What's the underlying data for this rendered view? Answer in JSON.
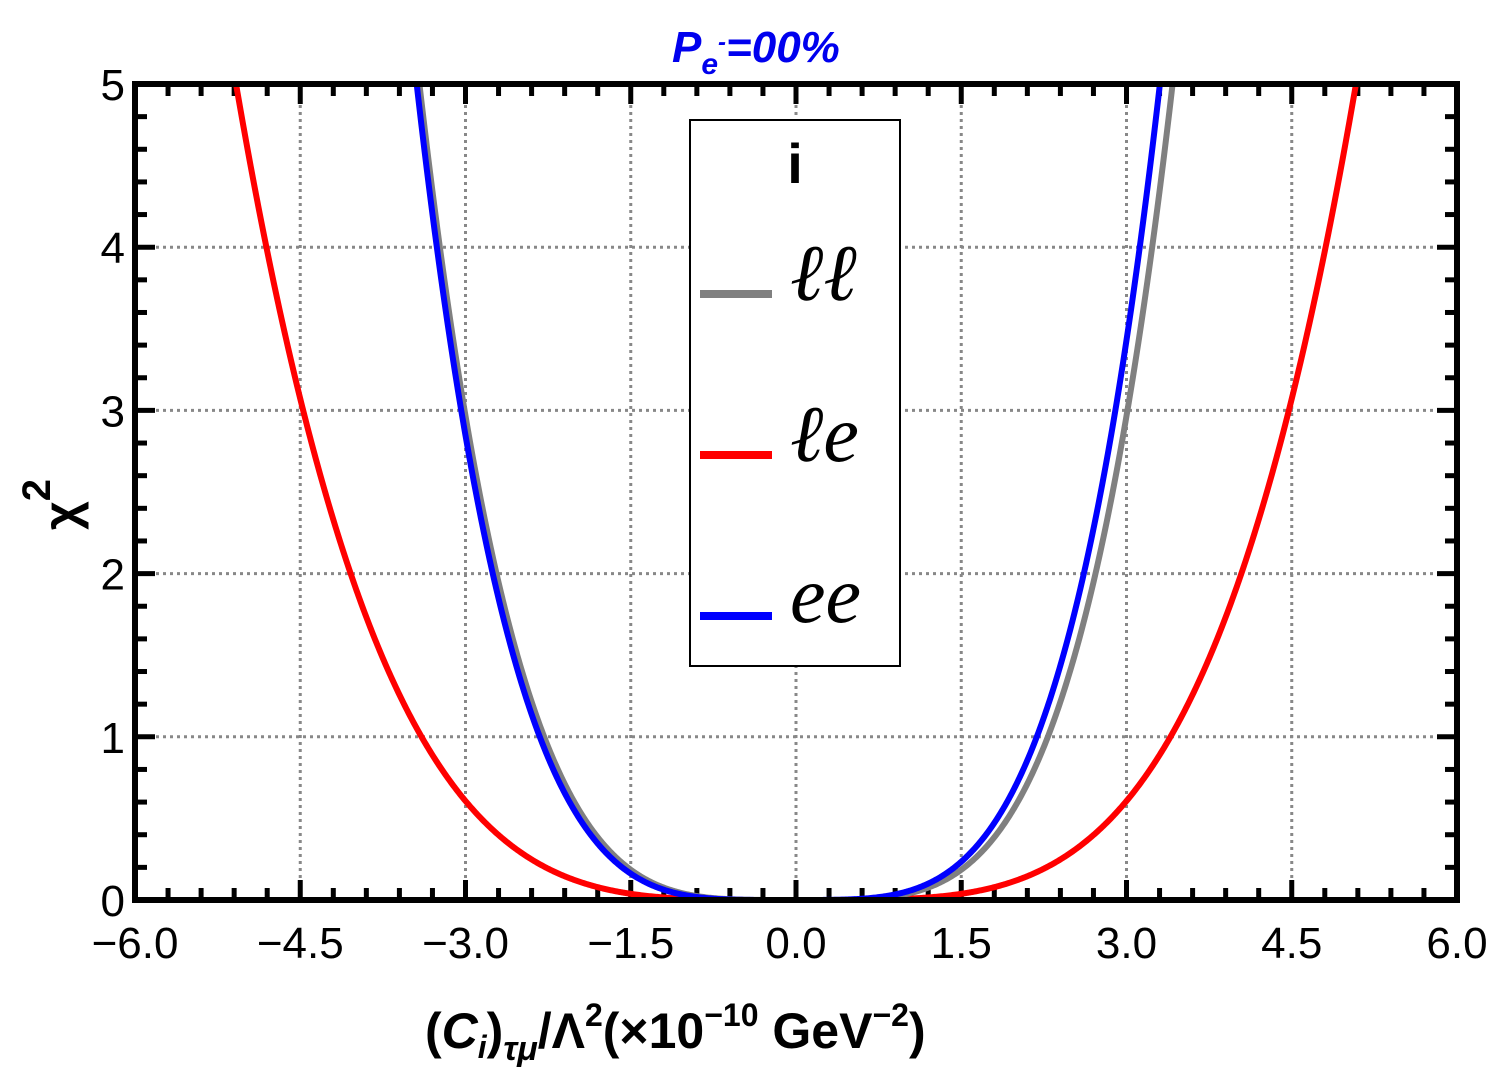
{
  "chart_data": {
    "type": "line",
    "title": "P",
    "title_sub": "e",
    "title_sup": "-",
    "title_rest": "=00%",
    "xlabel": {
      "open": "(",
      "c": "C",
      "c_sub": "i",
      "close": ")",
      "sub": "τμ",
      "lambda": "/Λ",
      "lambda_sup": "2",
      "paren": "(×10",
      "exp": "−10",
      "unit": " GeV",
      "unit_exp": "−2",
      "end": ")"
    },
    "ylabel": "χ",
    "ylabel_sup": "2",
    "xlim": [
      -6.0,
      6.0
    ],
    "ylim": [
      0,
      5
    ],
    "x_ticks": [
      "−6.0",
      "−4.5",
      "−3.0",
      "−1.5",
      "0.0",
      "1.5",
      "3.0",
      "4.5",
      "6.0"
    ],
    "x_tick_values": [
      -6.0,
      -4.5,
      -3.0,
      -1.5,
      0.0,
      1.5,
      3.0,
      4.5,
      6.0
    ],
    "y_ticks": [
      "0",
      "1",
      "2",
      "3",
      "4",
      "5"
    ],
    "y_tick_values": [
      0,
      1,
      2,
      3,
      4,
      5
    ],
    "grid": true,
    "legend": {
      "title": "i",
      "placement": "top-center"
    },
    "series": [
      {
        "name": "ℓℓ",
        "color": "#808080",
        "coefficient": 0.03662,
        "shift": 0.0
      },
      {
        "name": "ℓe",
        "color": "#ff0000",
        "coefficient": 0.00749,
        "shift": 0.0
      },
      {
        "name": "ee",
        "color": "#0000ff",
        "coefficient": 0.03862,
        "shift": -0.07
      }
    ],
    "curve_model": "y = coefficient * (x - shift)^4"
  }
}
